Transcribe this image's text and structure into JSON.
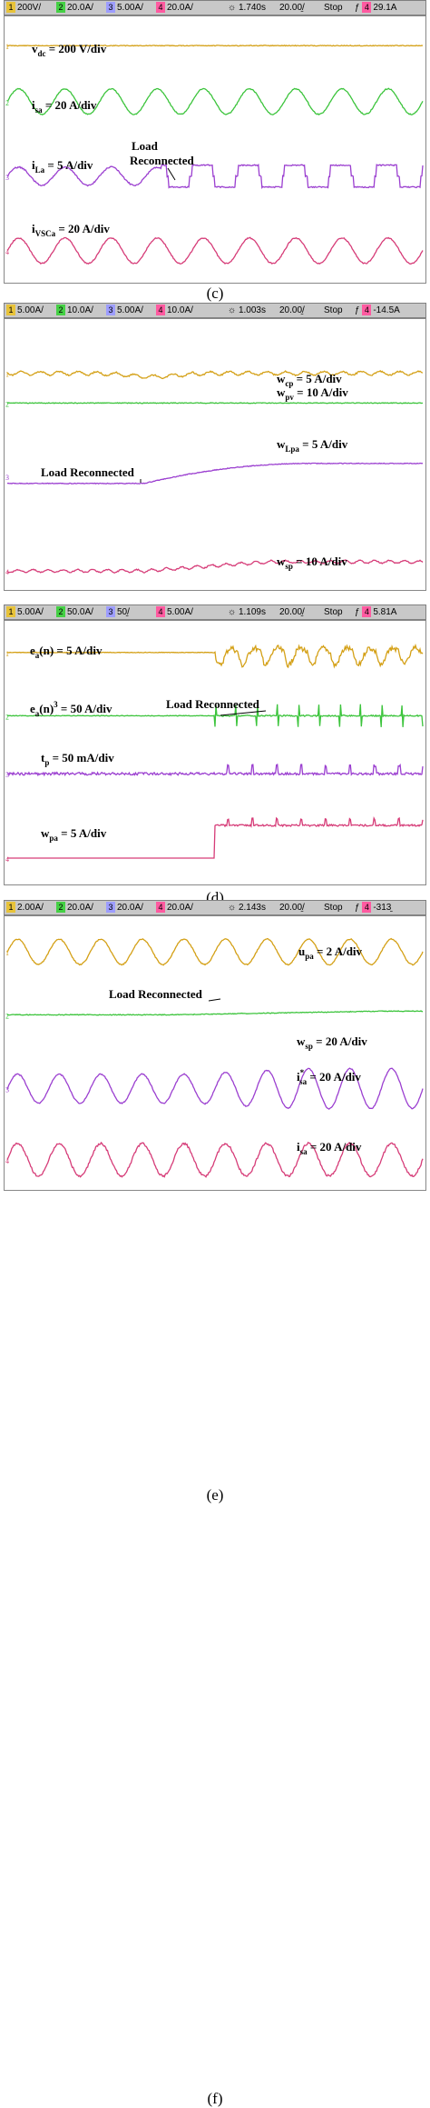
{
  "chart_data": [
    {
      "type": "line",
      "caption": "(c)",
      "header": {
        "ch1": "200V/",
        "ch2": "20.0A/",
        "ch3": "5.00A/",
        "ch4": "20.0A/",
        "time": "1.740s",
        "timebase": "20.00̱/",
        "state": "Stop",
        "trig": "29.1A"
      },
      "colors": {
        "ch1": "#d4a016",
        "ch2": "#3cc43c",
        "ch3": "#9b3fd0",
        "ch4": "#d63c78"
      },
      "annotation": {
        "line1": "Load",
        "line2": "Reconnected"
      },
      "series": [
        {
          "name": "v_dc",
          "label_main": "v",
          "label_sub": "dc",
          "label_rest": " = 200 V/div",
          "color": "#d4a016",
          "shape": "flat",
          "level": 0.11
        },
        {
          "name": "i_sa",
          "label_main": "i",
          "label_sub": "sa",
          "label_rest": " = 20 A/div",
          "color": "#3cc43c",
          "shape": "sine",
          "level": 0.32,
          "cycles": 9
        },
        {
          "name": "i_La",
          "label_main": "i",
          "label_sub": "La",
          "label_rest": " = 5 A/div",
          "color": "#9b3fd0",
          "shape": "quasi-square-step",
          "level": 0.6,
          "cycles": 9,
          "step_at": 0.37
        },
        {
          "name": "i_VSCa",
          "label_main": "i",
          "label_sub": "VSCa",
          "label_rest": " = 20 A/div",
          "color": "#d63c78",
          "shape": "sine",
          "level": 0.88,
          "cycles": 9
        }
      ]
    },
    {
      "type": "line",
      "caption": "(d)",
      "header": {
        "ch1": "5.00A/",
        "ch2": "10.0A/",
        "ch3": "5.00A/",
        "ch4": "10.0A/",
        "time": "1.003s",
        "timebase": "20.00̱/",
        "state": "Stop",
        "trig": "-14.5A"
      },
      "colors": {
        "ch1": "#d4a016",
        "ch2": "#3cc43c",
        "ch3": "#9b3fd0",
        "ch4": "#d63c78"
      },
      "annotation": {
        "line1": "Load Reconnected",
        "line2": ""
      },
      "series": [
        {
          "name": "w_cp",
          "label_main": "w",
          "label_sub": "cp",
          "label_rest": " = 5 A/div",
          "color": "#d4a016",
          "shape": "ripple-dip",
          "level": 0.2
        },
        {
          "name": "w_pv",
          "label_main": "w",
          "label_sub": "pv",
          "label_rest": " = 10 A/div",
          "color": "#3cc43c",
          "shape": "flat",
          "level": 0.31
        },
        {
          "name": "w_Lpa",
          "label_main": "w",
          "label_sub": "Lpa",
          "label_rest": " = 5 A/div",
          "color": "#9b3fd0",
          "shape": "rise",
          "level": 0.58
        },
        {
          "name": "w_sp",
          "label_main": "w",
          "label_sub": "sp",
          "label_rest": " = 10 A/div",
          "color": "#d63c78",
          "shape": "rise-small",
          "level": 0.93
        }
      ]
    },
    {
      "type": "line",
      "caption": "(e)",
      "header": {
        "ch1": "5.00A/",
        "ch2": "50.0A/",
        "ch3": "50̱/",
        "ch4": "5.00A/",
        "time": "1.109s",
        "timebase": "20.00̱/",
        "state": "Stop",
        "trig": "5.81A"
      },
      "colors": {
        "ch1": "#d4a016",
        "ch2": "#3cc43c",
        "ch3": "#9b3fd0",
        "ch4": "#d63c78"
      },
      "annotation": {
        "line1": "Load Reconnected",
        "line2": ""
      },
      "series": [
        {
          "name": "e_a(n)",
          "label_main": "e",
          "label_sub": "a",
          "label_rest": "(n) = 5 A/div",
          "color": "#d4a016",
          "shape": "flat-then-spiky",
          "level": 0.12
        },
        {
          "name": "e_a(n)^3",
          "label_main": "e",
          "label_sub": "a",
          "label_rest": "(n)",
          "label_sup": "3",
          "label_rest2": " = 50 A/div",
          "color": "#3cc43c",
          "shape": "flat-then-spikes",
          "level": 0.36
        },
        {
          "name": "t_p",
          "label_main": "t",
          "label_sub": "p",
          "label_rest": " = 50 mA/div",
          "color": "#9b3fd0",
          "shape": "noisy-then-pulses",
          "level": 0.58
        },
        {
          "name": "w_pa",
          "label_main": "w",
          "label_sub": "pa",
          "label_rest": " = 5 A/div",
          "color": "#d63c78",
          "shape": "step-up",
          "level": 0.9
        }
      ]
    },
    {
      "type": "line",
      "caption": "(f)",
      "header": {
        "ch1": "2.00A/",
        "ch2": "20.0A/",
        "ch3": "20.0A/",
        "ch4": "20.0A/",
        "time": "2.143s",
        "timebase": "20.00̱/",
        "state": "Stop",
        "trig": "-313̱"
      },
      "colors": {
        "ch1": "#d4a016",
        "ch2": "#3cc43c",
        "ch3": "#9b3fd0",
        "ch4": "#d63c78"
      },
      "annotation": {
        "line1": "Load Reconnected",
        "line2": ""
      },
      "series": [
        {
          "name": "u_pa",
          "label_main": "u",
          "label_sub": "pa",
          "label_rest": " = 2 A/div",
          "color": "#d4a016",
          "shape": "sine",
          "level": 0.13,
          "cycles": 10
        },
        {
          "name": "w_sp",
          "label_main": "w",
          "label_sub": "sp",
          "label_rest": " = 20 A/div",
          "color": "#3cc43c",
          "shape": "flat-slight-rise",
          "level": 0.36
        },
        {
          "name": "i*_sa",
          "label_main": "i",
          "label_sub": "sa",
          "label_sup": "*",
          "label_rest": " = 20 A/div",
          "color": "#9b3fd0",
          "shape": "sine-grow",
          "level": 0.63,
          "cycles": 10
        },
        {
          "name": "i_sa",
          "label_main": "i",
          "label_sub": "sa",
          "label_rest": " = 20 A/div",
          "color": "#d63c78",
          "shape": "sine-noisy",
          "level": 0.89,
          "cycles": 10
        }
      ]
    }
  ]
}
